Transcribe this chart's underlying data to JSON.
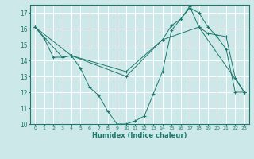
{
  "title": "",
  "xlabel": "Humidex (Indice chaleur)",
  "xlim": [
    -0.5,
    23.5
  ],
  "ylim": [
    10,
    17.5
  ],
  "yticks": [
    10,
    11,
    12,
    13,
    14,
    15,
    16,
    17
  ],
  "xticks": [
    0,
    1,
    2,
    3,
    4,
    5,
    6,
    7,
    8,
    9,
    10,
    11,
    12,
    13,
    14,
    15,
    16,
    17,
    18,
    19,
    20,
    21,
    22,
    23
  ],
  "bg_color": "#cce8e8",
  "line_color": "#1a7a6e",
  "grid_color": "#ffffff",
  "line1": {
    "x": [
      0,
      1,
      2,
      3,
      4,
      5,
      6,
      7,
      8,
      9,
      10,
      11,
      12,
      13,
      14,
      15,
      16,
      17,
      18,
      19,
      20,
      21,
      22,
      23
    ],
    "y": [
      16.1,
      15.4,
      14.2,
      14.2,
      14.3,
      13.5,
      12.3,
      11.8,
      10.8,
      10.0,
      10.0,
      10.2,
      10.5,
      11.9,
      13.3,
      15.9,
      16.6,
      17.3,
      17.0,
      16.1,
      15.5,
      14.7,
      12.0,
      12.0
    ]
  },
  "line2": {
    "x": [
      0,
      3,
      4,
      10,
      14,
      15,
      16,
      17,
      18,
      19,
      20,
      21,
      22,
      23
    ],
    "y": [
      16.1,
      14.2,
      14.3,
      13.0,
      15.3,
      16.2,
      16.6,
      17.4,
      16.1,
      15.7,
      15.6,
      15.5,
      12.9,
      12.0
    ]
  },
  "line3": {
    "x": [
      0,
      4,
      10,
      14,
      18,
      23
    ],
    "y": [
      16.1,
      14.3,
      13.3,
      15.3,
      16.1,
      12.0
    ]
  }
}
